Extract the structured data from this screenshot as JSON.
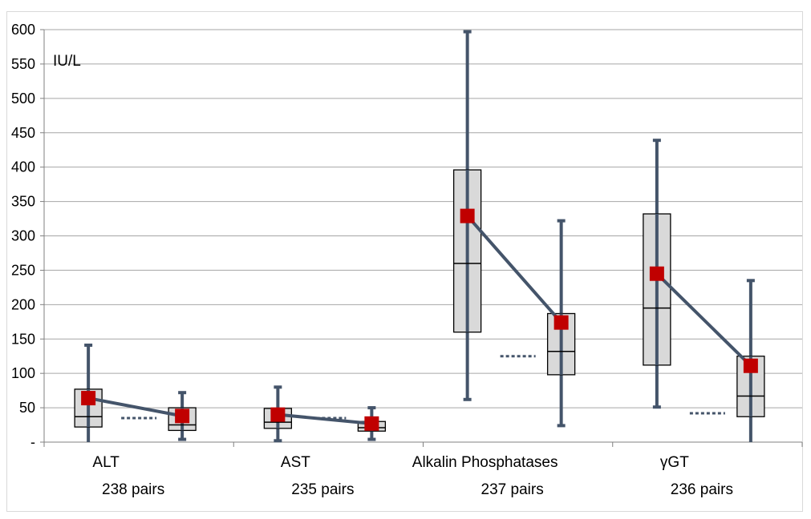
{
  "chart_data": {
    "type": "box",
    "unit_label": "IU/L",
    "y_ticks": [
      "600",
      "550",
      "500",
      "450",
      "400",
      "350",
      "300",
      "250",
      "200",
      "150",
      "100",
      "50",
      "-"
    ],
    "ylim": [
      0,
      600
    ],
    "grid": true,
    "colors": {
      "box_fill": "#d9d9d9",
      "whisker": "#44546a",
      "mean_marker": "#c00000",
      "grid": "#a6a6a6"
    },
    "categories": [
      {
        "name": "ALT",
        "pairs_label": "238 pairs",
        "reference_line": 35,
        "boxes": [
          {
            "min": 0,
            "q1": 22,
            "median": 37,
            "q3": 77,
            "max": 141,
            "mean": 64
          },
          {
            "min": 4,
            "q1": 17,
            "median": 25,
            "q3": 50,
            "max": 72,
            "mean": 38
          }
        ]
      },
      {
        "name": "AST",
        "pairs_label": "235 pairs",
        "reference_line": 35,
        "boxes": [
          {
            "min": 2,
            "q1": 20,
            "median": 29,
            "q3": 49,
            "max": 80,
            "mean": 40
          },
          {
            "min": 4,
            "q1": 16,
            "median": 21,
            "q3": 30,
            "max": 50,
            "mean": 27
          }
        ]
      },
      {
        "name": "Alkalin Phosphatases",
        "pairs_label": "237 pairs",
        "reference_line": 125,
        "boxes": [
          {
            "min": 62,
            "q1": 160,
            "median": 260,
            "q3": 396,
            "max": 597,
            "mean": 329
          },
          {
            "min": 24,
            "q1": 98,
            "median": 132,
            "q3": 187,
            "max": 322,
            "mean": 174
          }
        ]
      },
      {
        "name": "γGT",
        "pairs_label": "236 pairs",
        "reference_line": 42,
        "boxes": [
          {
            "min": 51,
            "q1": 112,
            "median": 195,
            "q3": 332,
            "max": 439,
            "mean": 245
          },
          {
            "min": 0,
            "q1": 37,
            "median": 67,
            "q3": 125,
            "max": 235,
            "mean": 111
          }
        ]
      }
    ]
  }
}
